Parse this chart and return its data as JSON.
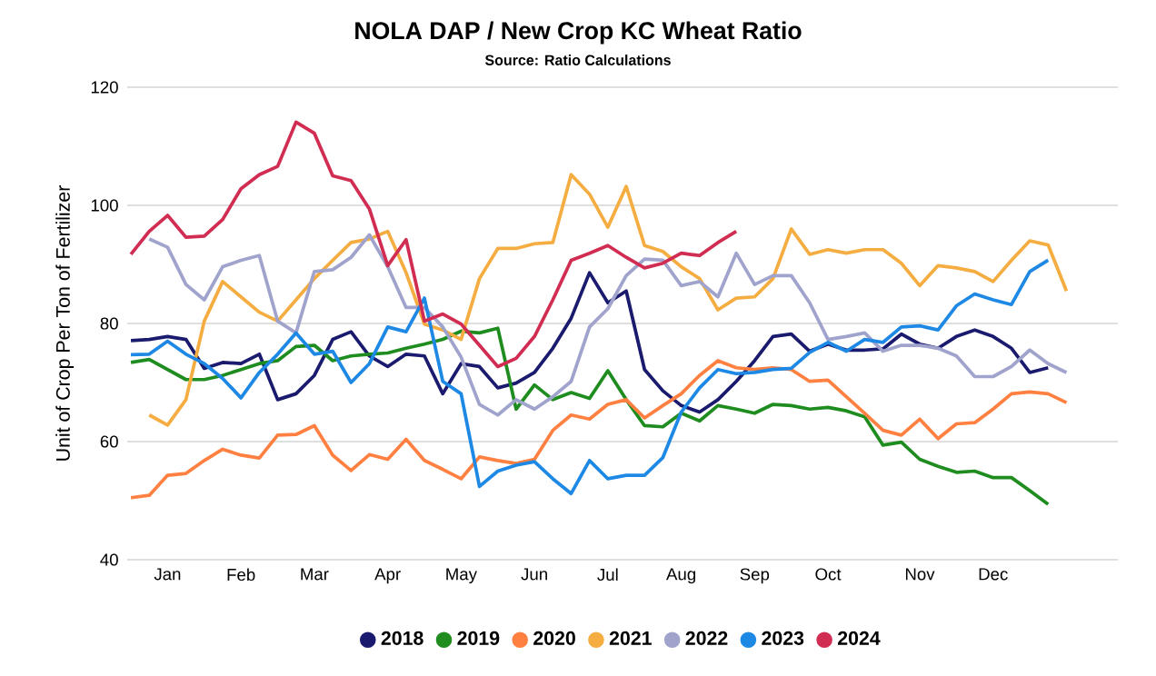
{
  "chart_data": {
    "type": "line",
    "title": "NOLA DAP / New Crop KC Wheat Ratio",
    "subtitle": "Source: Ratio Calculations",
    "ylabel": "Unit of Crop Per Ton of Fertilizer",
    "categories": [
      null,
      null,
      "Jan",
      null,
      null,
      null,
      "Feb",
      null,
      null,
      null,
      "Mar",
      null,
      null,
      null,
      "Apr",
      null,
      null,
      null,
      "May",
      null,
      null,
      null,
      "Jun",
      null,
      null,
      null,
      "Jul",
      null,
      null,
      null,
      "Aug",
      null,
      null,
      null,
      "Sep",
      null,
      null,
      null,
      "Oct",
      null,
      null,
      null,
      null,
      "Nov",
      null,
      null,
      null,
      "Dec",
      null,
      null,
      null,
      null
    ],
    "ylim": [
      40,
      120
    ],
    "yticks": [
      40,
      60,
      80,
      100,
      120
    ],
    "grid": "y",
    "legend": "bottom",
    "marker": "none",
    "series": [
      {
        "name": "2018",
        "color": "#1a1a6e",
        "values": [
          77.1,
          77.3,
          77.8,
          77.3,
          72.4,
          73.4,
          73.2,
          74.8,
          67.1,
          68.1,
          71.2,
          77.3,
          78.6,
          74.5,
          72.7,
          74.8,
          74.5,
          68.1,
          73.2,
          72.7,
          69.1,
          69.9,
          71.7,
          75.8,
          80.9,
          88.6,
          83.5,
          85.5,
          72.2,
          68.6,
          66.1,
          65.0,
          67.1,
          70.2,
          73.7,
          77.8,
          78.2,
          75.3,
          76.5,
          75.5,
          75.5,
          75.7,
          78.2,
          76.5,
          75.8,
          77.8,
          78.9,
          77.8,
          75.8,
          71.7,
          72.5,
          null
        ]
      },
      {
        "name": "2019",
        "color": "#1e8c1e",
        "values": [
          73.4,
          73.9,
          72.2,
          70.5,
          70.5,
          71.2,
          72.2,
          73.2,
          73.7,
          76.1,
          76.3,
          73.7,
          74.5,
          74.8,
          75.0,
          75.8,
          76.5,
          77.3,
          78.7,
          78.4,
          79.2,
          65.5,
          69.6,
          67.1,
          68.3,
          67.3,
          72.0,
          67.1,
          62.7,
          62.5,
          64.8,
          63.5,
          66.1,
          65.5,
          64.8,
          66.3,
          66.1,
          65.5,
          65.8,
          65.2,
          64.2,
          59.4,
          59.9,
          57.0,
          55.8,
          54.8,
          55.0,
          53.9,
          53.9,
          51.7,
          49.4,
          null
        ]
      },
      {
        "name": "2020",
        "color": "#ff8040",
        "values": [
          50.5,
          50.9,
          54.3,
          54.6,
          56.8,
          58.7,
          57.7,
          57.2,
          61.1,
          61.2,
          62.7,
          57.7,
          55.1,
          57.8,
          57.0,
          60.4,
          56.8,
          55.3,
          53.7,
          57.4,
          56.8,
          56.3,
          57.0,
          61.9,
          64.5,
          63.8,
          66.3,
          67.1,
          64.0,
          66.1,
          68.1,
          71.2,
          73.7,
          72.5,
          72.2,
          72.5,
          72.2,
          70.2,
          70.4,
          67.6,
          64.8,
          61.9,
          61.1,
          63.8,
          60.5,
          63.0,
          63.2,
          65.5,
          68.1,
          68.4,
          68.1,
          66.6
        ]
      },
      {
        "name": "2021",
        "color": "#f5ad42",
        "values": [
          null,
          64.5,
          62.8,
          67.1,
          80.4,
          87.1,
          84.5,
          81.9,
          80.4,
          84.0,
          87.6,
          90.7,
          93.7,
          94.3,
          95.6,
          88.6,
          79.9,
          78.9,
          77.3,
          87.6,
          92.7,
          92.7,
          93.5,
          93.7,
          105.2,
          101.9,
          96.3,
          103.2,
          93.2,
          92.2,
          89.6,
          87.6,
          82.3,
          84.3,
          84.5,
          87.6,
          96.0,
          91.7,
          92.5,
          91.9,
          92.5,
          92.5,
          90.2,
          86.4,
          89.8,
          89.4,
          88.8,
          87.1,
          90.7,
          94.0,
          93.3,
          85.5
        ]
      },
      {
        "name": "2022",
        "color": "#a0a3cc",
        "values": [
          null,
          94.3,
          92.9,
          86.6,
          84.0,
          89.6,
          90.7,
          91.5,
          80.4,
          78.4,
          88.8,
          89.1,
          91.2,
          95.0,
          89.6,
          82.7,
          82.7,
          79.4,
          74.3,
          66.3,
          64.5,
          67.1,
          65.5,
          67.6,
          70.2,
          79.4,
          82.5,
          88.1,
          90.9,
          90.7,
          86.4,
          87.1,
          84.5,
          91.9,
          86.6,
          88.1,
          88.1,
          83.5,
          77.3,
          77.8,
          78.4,
          75.3,
          76.3,
          76.3,
          75.8,
          74.5,
          71.0,
          71.0,
          72.7,
          75.5,
          73.2,
          71.7
        ]
      },
      {
        "name": "2023",
        "color": "#1e88e5",
        "values": [
          74.7,
          74.8,
          77.0,
          74.8,
          73.2,
          70.7,
          67.4,
          71.7,
          74.8,
          78.4,
          74.8,
          75.3,
          70.0,
          73.2,
          79.4,
          78.6,
          84.3,
          70.2,
          68.1,
          52.4,
          55.0,
          56.0,
          56.6,
          53.7,
          51.2,
          56.8,
          53.7,
          54.3,
          54.3,
          57.3,
          65.0,
          69.1,
          72.2,
          71.5,
          71.7,
          72.2,
          72.4,
          75.1,
          76.8,
          75.3,
          77.3,
          76.8,
          79.4,
          79.6,
          78.9,
          83.0,
          85.0,
          84.0,
          83.2,
          88.8,
          90.7,
          null
        ]
      },
      {
        "name": "2024",
        "color": "#d12d52",
        "values": [
          91.7,
          95.6,
          98.3,
          94.6,
          94.8,
          97.6,
          102.8,
          105.2,
          106.6,
          114.1,
          112.2,
          105.0,
          104.2,
          99.4,
          89.8,
          94.2,
          80.4,
          81.6,
          79.9,
          76.3,
          72.7,
          74.1,
          77.8,
          84.0,
          90.7,
          91.9,
          93.2,
          91.2,
          89.4,
          90.2,
          91.9,
          91.5,
          93.7,
          95.6,
          null,
          null,
          null,
          null,
          null,
          null,
          null,
          null,
          null,
          null,
          null,
          null,
          null,
          null,
          null,
          null,
          null,
          null
        ]
      }
    ]
  }
}
